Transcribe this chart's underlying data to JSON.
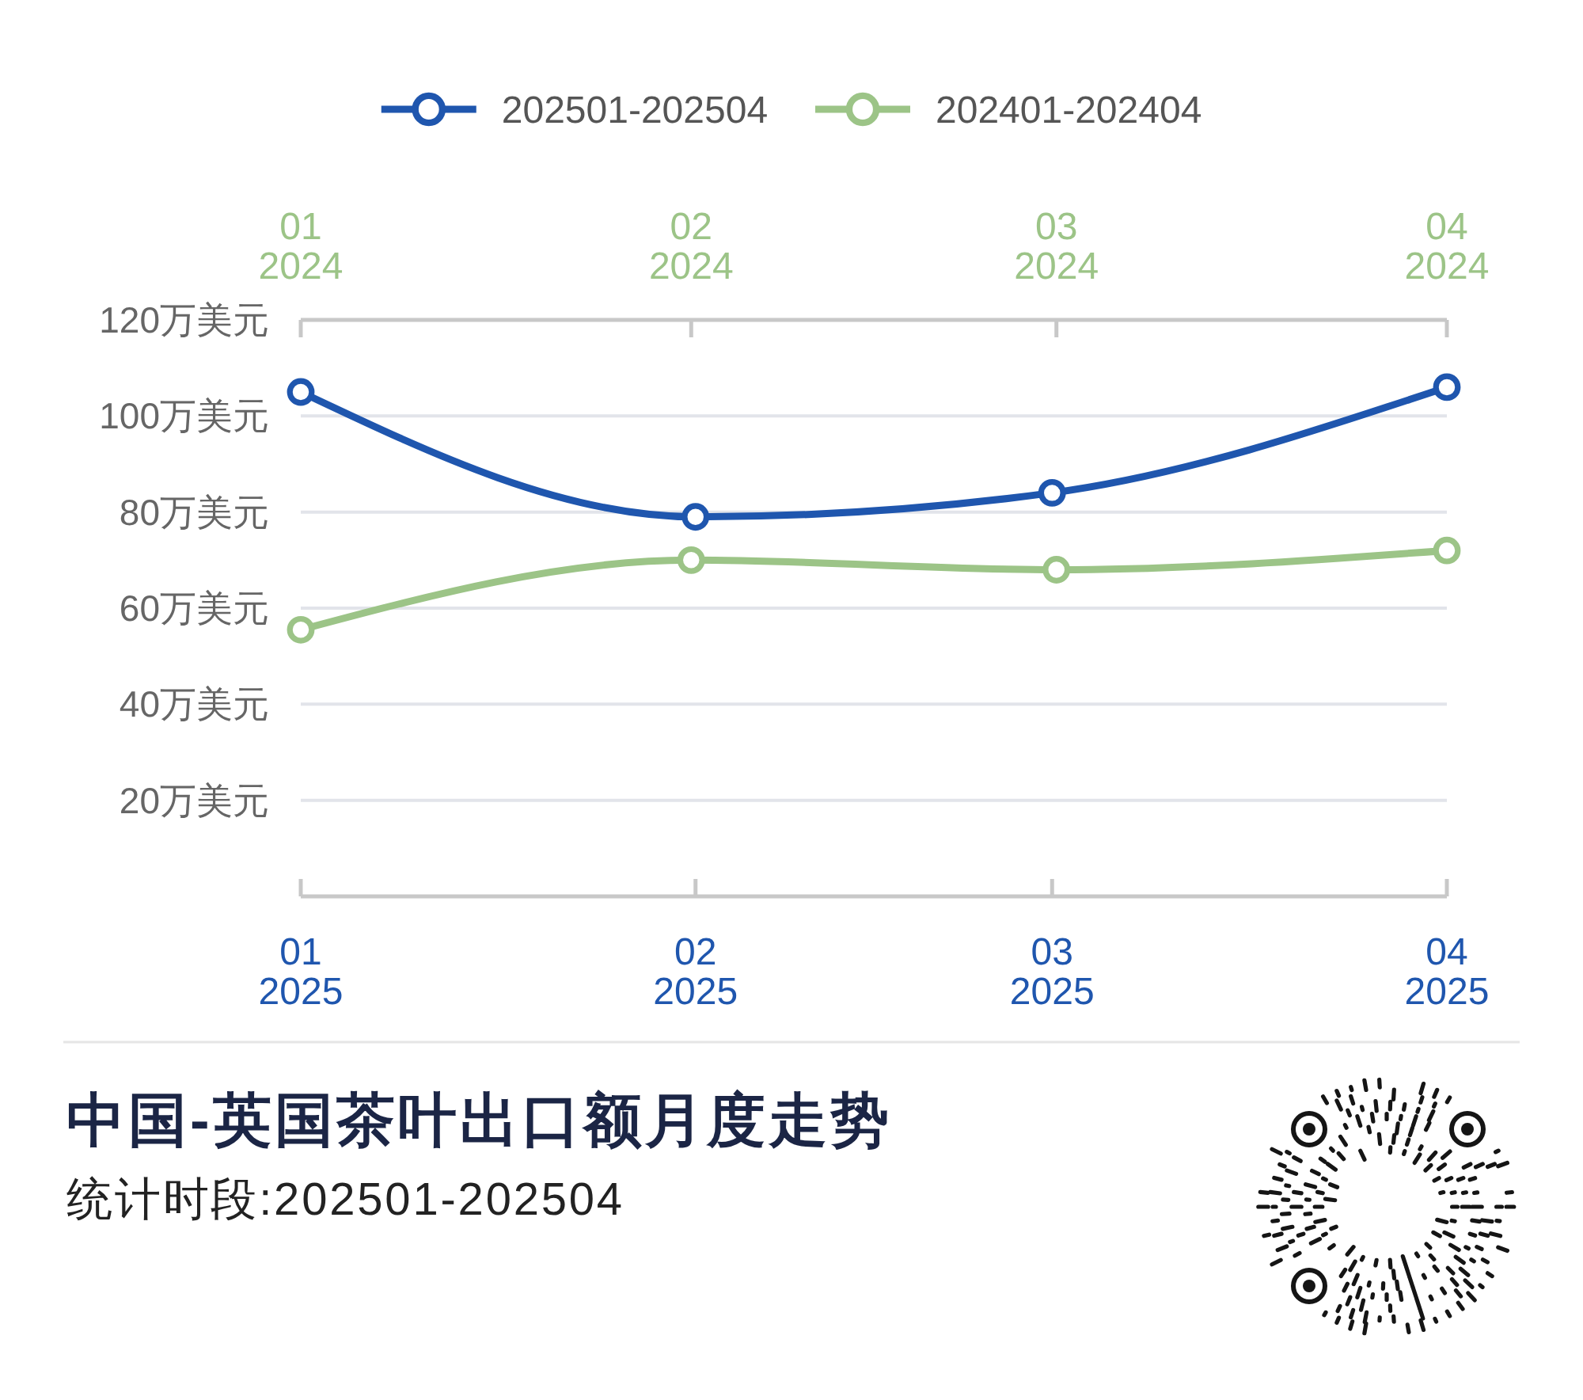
{
  "chart_data": {
    "type": "line",
    "title": "中国-英国茶叶出口额月度走势",
    "subtitle": "统计时段:202501-202504",
    "x": [
      "2025-01",
      "2025-02",
      "2025-03",
      "2025-04"
    ],
    "xlim": [
      "2025-01",
      "2025-04"
    ],
    "xticks": [
      {
        "value": "2025-01",
        "label": "01\n2025"
      },
      {
        "value": "2025-02",
        "label": "02\n2025"
      },
      {
        "value": "2025-03",
        "label": "03\n2025"
      },
      {
        "value": "2025-04",
        "label": "04\n2025"
      }
    ],
    "x2lim": [
      "2024-01",
      "2024-04"
    ],
    "x2ticks": [
      {
        "value": "2024-01",
        "label": "01\n2024"
      },
      {
        "value": "2024-02",
        "label": "02\n2024"
      },
      {
        "value": "2024-03",
        "label": "03\n2024"
      },
      {
        "value": "2024-04",
        "label": "04\n2024"
      }
    ],
    "ylim": [
      0,
      120
    ],
    "yticks": [
      {
        "value": 20,
        "label": "20万美元"
      },
      {
        "value": 40,
        "label": "40万美元"
      },
      {
        "value": 60,
        "label": "60万美元"
      },
      {
        "value": 80,
        "label": "80万美元"
      },
      {
        "value": 100,
        "label": "100万美元"
      },
      {
        "value": 120,
        "label": "120万美元"
      }
    ],
    "series": [
      {
        "name": "202501-202504",
        "color": "#1f56ae",
        "values": [
          105,
          79,
          84,
          106
        ]
      },
      {
        "name": "202401-202404",
        "color": "#9cc487",
        "x": [
          "2024-01",
          "2024-02",
          "2024-03",
          "2024-04"
        ],
        "values": [
          55.5,
          70,
          68,
          72
        ],
        "axis": "x2"
      }
    ],
    "grid": "y",
    "legend": "top",
    "marker": "circle",
    "line_style": "solid"
  }
}
